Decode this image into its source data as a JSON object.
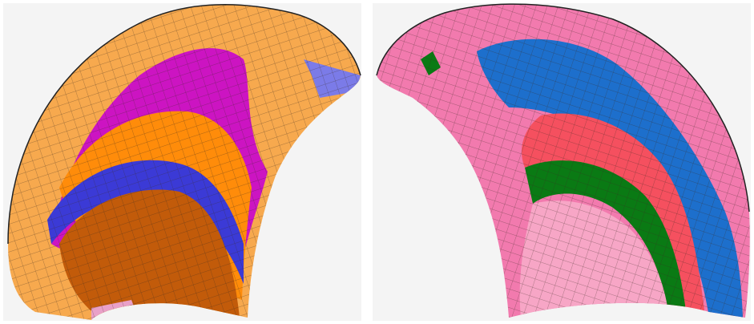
{
  "panels": [
    {
      "id": "left",
      "colors": {
        "light_orange": "#f7a94e",
        "magenta": "#cc14c2",
        "orange": "#ff8c0a",
        "blue": "#3b3ad6",
        "periwinkle": "#7b7be8",
        "brown": "#c25b0a",
        "pink": "#e9a0c8"
      }
    },
    {
      "id": "right",
      "colors": {
        "pink": "#f27aae",
        "blue": "#1d6fcc",
        "red": "#f5505f",
        "green": "#0a7a14",
        "light_pink": "#f7a6c6"
      }
    }
  ]
}
